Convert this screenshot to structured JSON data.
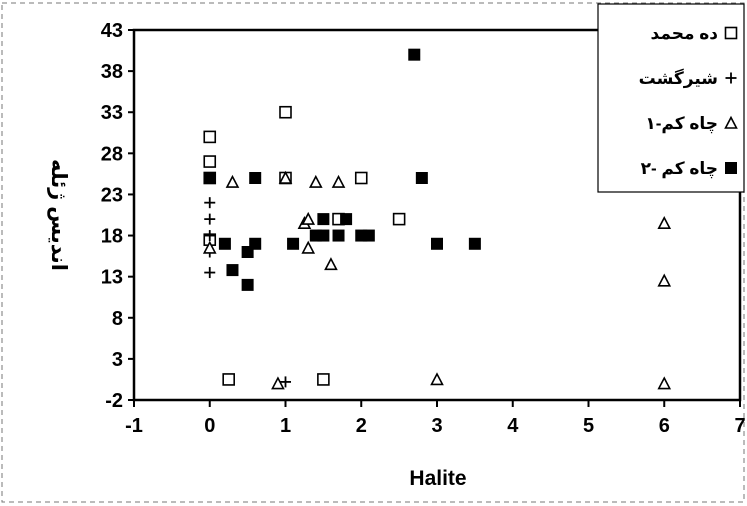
{
  "chart_data": {
    "type": "scatter",
    "xlabel": "Halite",
    "ylabel": "اندیس ژئله",
    "xlim": [
      -1,
      7
    ],
    "ylim": [
      -2,
      43
    ],
    "xticks": [
      "-1",
      "0",
      "1",
      "2",
      "3",
      "4",
      "5",
      "6",
      "7"
    ],
    "yticks": [
      "-2",
      "3",
      "8",
      "13",
      "18",
      "23",
      "28",
      "33",
      "38",
      "43"
    ],
    "grid": false,
    "legend_position": "top-right",
    "series": [
      {
        "name": "ده محمد",
        "marker": "open-square",
        "points": [
          [
            0,
            30
          ],
          [
            0,
            27
          ],
          [
            0,
            25
          ],
          [
            0,
            17.5
          ],
          [
            1,
            33
          ],
          [
            1,
            25
          ],
          [
            2,
            25
          ],
          [
            1.7,
            20
          ],
          [
            2.5,
            20
          ],
          [
            0.25,
            0.5
          ],
          [
            1.5,
            0.5
          ]
        ]
      },
      {
        "name": "شیرگشت",
        "marker": "plus",
        "points": [
          [
            0,
            22
          ],
          [
            0,
            20
          ],
          [
            0,
            18
          ],
          [
            0,
            16
          ],
          [
            0,
            13.5
          ],
          [
            1,
            0.2
          ]
        ]
      },
      {
        "name": "چاه کم-۱",
        "marker": "open-triangle",
        "points": [
          [
            0,
            16.5
          ],
          [
            0.3,
            24.5
          ],
          [
            1,
            25
          ],
          [
            1.25,
            19.5
          ],
          [
            1.3,
            20
          ],
          [
            1.3,
            16.5
          ],
          [
            1.4,
            24.5
          ],
          [
            1.7,
            24.5
          ],
          [
            1.6,
            14.5
          ],
          [
            0.9,
            0
          ],
          [
            3,
            0.5
          ],
          [
            6,
            19.5
          ],
          [
            6,
            12.5
          ],
          [
            6,
            0
          ]
        ]
      },
      {
        "name": "چاه کم -۲",
        "marker": "filled-square",
        "points": [
          [
            0,
            25
          ],
          [
            0.2,
            17
          ],
          [
            0.3,
            13.8
          ],
          [
            0.5,
            16
          ],
          [
            0.5,
            12
          ],
          [
            0.6,
            17
          ],
          [
            0.6,
            25
          ],
          [
            1.1,
            17
          ],
          [
            1.4,
            18
          ],
          [
            1.5,
            20
          ],
          [
            1.5,
            18
          ],
          [
            1.7,
            18
          ],
          [
            1.8,
            20
          ],
          [
            2,
            18
          ],
          [
            2.1,
            18
          ],
          [
            2.7,
            40
          ],
          [
            2.8,
            25
          ],
          [
            3,
            17
          ],
          [
            3.5,
            17
          ]
        ]
      }
    ]
  }
}
